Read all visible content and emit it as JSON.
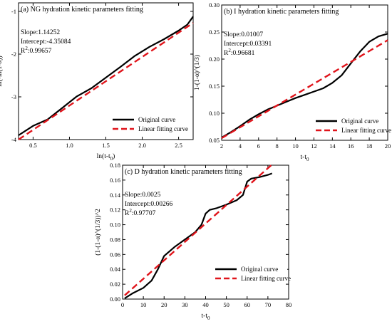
{
  "figure": {
    "colors": {
      "original": "#000000",
      "fit": "#e0141b",
      "axis": "#000000"
    }
  },
  "chart_data": [
    {
      "type": "line",
      "title": "(a) NG hydration kinetic parameters fitting",
      "xlabel": "ln(t-t",
      "xlabel_sub": "0",
      "xlabel_tail": ")",
      "ylabel": "ln(-ln(1-α))",
      "xlim": [
        0.3,
        2.7
      ],
      "ylim": [
        -4.0,
        -0.8
      ],
      "xticks": [
        0.5,
        1.0,
        1.5,
        2.0,
        2.5
      ],
      "xtick_labels": [
        "0.5",
        "1.0",
        "1.5",
        "2.0",
        "2.5"
      ],
      "yticks": [
        -4,
        -3,
        -2,
        -1
      ],
      "ytick_labels": [
        "-4",
        "-3",
        "-2",
        "-1"
      ],
      "stats": {
        "slope": "Slope:1.14252",
        "intercept": "Intercept:-4.35084",
        "r2_prefix": "R",
        "r2_sup": "2",
        "r2_value": ":0.99657"
      },
      "legend": {
        "position": "bottom-right",
        "items": [
          "Original curve",
          "Linear fitting curve"
        ]
      },
      "series": [
        {
          "name": "Original curve",
          "style": "solid",
          "x": [
            0.3,
            0.5,
            0.7,
            0.9,
            1.1,
            1.3,
            1.5,
            1.7,
            1.9,
            2.1,
            2.3,
            2.5,
            2.62,
            2.7
          ],
          "y": [
            -3.9,
            -3.68,
            -3.53,
            -3.26,
            -2.99,
            -2.8,
            -2.55,
            -2.3,
            -2.04,
            -1.83,
            -1.65,
            -1.45,
            -1.31,
            -1.12
          ]
        },
        {
          "name": "Linear fitting curve",
          "style": "dashed",
          "x": [
            0.3,
            2.7
          ],
          "y": [
            -4.0,
            -1.27
          ]
        }
      ]
    },
    {
      "type": "line",
      "title": "(b) I hydration kinetic parameters fitting",
      "xlabel": "t-t",
      "xlabel_sub": "0",
      "xlabel_tail": "",
      "ylabel": "1-(1-α)^(1/3)",
      "xlim": [
        2,
        20
      ],
      "ylim": [
        0.05,
        0.3
      ],
      "xticks": [
        2,
        4,
        6,
        8,
        10,
        12,
        14,
        16,
        18,
        20
      ],
      "xtick_labels": [
        "2",
        "4",
        "6",
        "8",
        "10",
        "12",
        "14",
        "16",
        "18",
        "20"
      ],
      "yticks": [
        0.05,
        0.1,
        0.15,
        0.2,
        0.25,
        0.3
      ],
      "ytick_labels": [
        "0.05",
        "0.10",
        "0.15",
        "0.20",
        "0.25",
        "0.30"
      ],
      "stats": {
        "slope": "Slope:0.01007",
        "intercept": "Intercept:0.03391",
        "r2_prefix": "R",
        "r2_sup": "2",
        "r2_value": ":0.96681"
      },
      "legend": {
        "position": "bottom-right",
        "items": [
          "Original curve",
          "Linear fitting curve"
        ]
      },
      "series": [
        {
          "name": "Original curve",
          "style": "solid",
          "x": [
            2,
            3,
            4,
            5,
            6,
            7,
            8,
            9,
            10,
            11,
            12,
            13,
            14,
            15,
            16,
            17,
            18,
            19,
            20
          ],
          "y": [
            0.055,
            0.065,
            0.076,
            0.088,
            0.098,
            0.107,
            0.114,
            0.121,
            0.128,
            0.134,
            0.14,
            0.146,
            0.156,
            0.17,
            0.192,
            0.214,
            0.232,
            0.242,
            0.247
          ]
        },
        {
          "name": "Linear fitting curve",
          "style": "dashed",
          "x": [
            2,
            20
          ],
          "y": [
            0.054,
            0.235
          ]
        }
      ]
    },
    {
      "type": "line",
      "title": "(c) D hydration kinetic parameters fitting",
      "xlabel": "t-t",
      "xlabel_sub": "0",
      "xlabel_tail": "",
      "ylabel": "(1-(1-α)^(1/3))^2",
      "xlim": [
        0,
        80
      ],
      "ylim": [
        0.0,
        0.18
      ],
      "xticks": [
        0,
        10,
        20,
        30,
        40,
        50,
        60,
        70,
        80
      ],
      "xtick_labels": [
        "0",
        "10",
        "20",
        "30",
        "40",
        "50",
        "60",
        "70",
        "80"
      ],
      "yticks": [
        0.0,
        0.02,
        0.04,
        0.06,
        0.08,
        0.1,
        0.12,
        0.14,
        0.16,
        0.18
      ],
      "ytick_labels": [
        "0.00",
        "0.02",
        "0.04",
        "0.06",
        "0.08",
        "0.10",
        "0.12",
        "0.14",
        "0.16",
        "0.18"
      ],
      "stats": {
        "slope": "Slope:0.0025",
        "intercept": "Intercept:0.00266",
        "r2_prefix": "R",
        "r2_sup": "2",
        "r2_value": ":0.97707"
      },
      "legend": {
        "position": "bottom-right",
        "items": [
          "Original curve",
          "Linear fitting curve"
        ]
      },
      "series": [
        {
          "name": "Original curve",
          "style": "solid",
          "x": [
            1,
            5,
            10,
            14,
            17,
            20,
            25,
            30,
            35,
            38,
            40,
            42,
            45,
            50,
            55,
            58,
            60,
            61,
            62,
            66,
            70,
            72
          ],
          "y": [
            0.001,
            0.008,
            0.015,
            0.025,
            0.04,
            0.058,
            0.07,
            0.08,
            0.09,
            0.1,
            0.115,
            0.12,
            0.122,
            0.127,
            0.133,
            0.14,
            0.158,
            0.16,
            0.162,
            0.164,
            0.167,
            0.169
          ]
        },
        {
          "name": "Linear fitting curve",
          "style": "dashed",
          "x": [
            1,
            72
          ],
          "y": [
            0.005,
            0.181
          ]
        }
      ]
    }
  ]
}
